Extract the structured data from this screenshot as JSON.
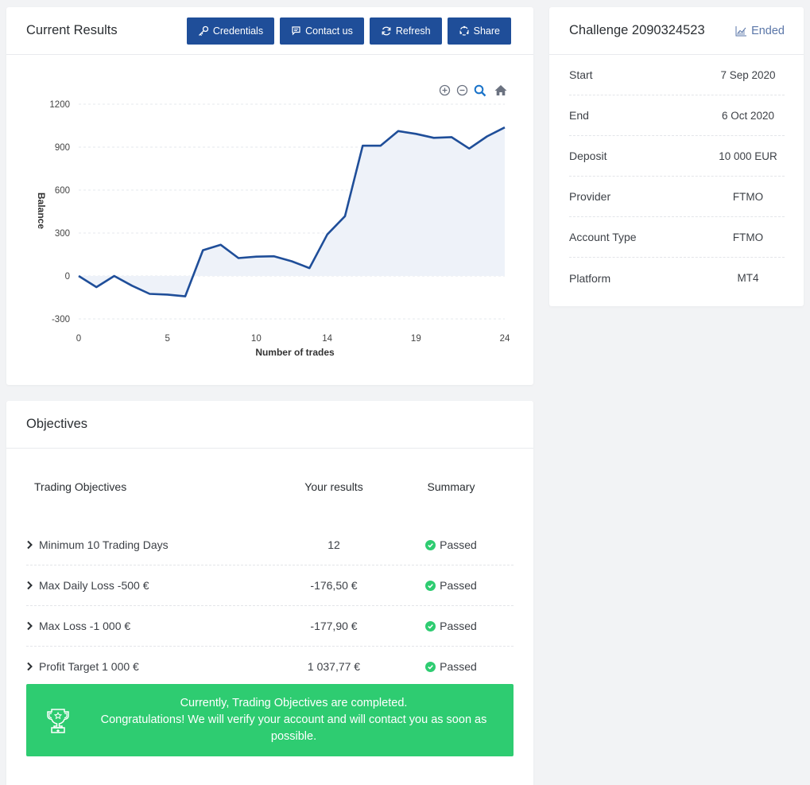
{
  "results": {
    "title": "Current Results",
    "buttons": {
      "credentials": "Credentials",
      "contact": "Contact us",
      "refresh": "Refresh",
      "share": "Share"
    }
  },
  "chart_data": {
    "type": "area",
    "title": "",
    "xlabel": "Number of trades",
    "ylabel": "Balance",
    "xlim": [
      0,
      24
    ],
    "ylim": [
      -300,
      1200
    ],
    "x_ticks": [
      0,
      5,
      10,
      14,
      19,
      24
    ],
    "y_ticks": [
      -300,
      0,
      300,
      600,
      900,
      1200
    ],
    "grid": true,
    "legend": "none",
    "line_color": "#1f4e99",
    "fill_color": "#eef2f9",
    "series": [
      {
        "x": [
          0,
          1,
          2,
          3,
          4,
          5,
          6,
          7,
          8,
          9,
          10,
          11,
          12,
          13,
          14,
          15,
          16,
          17,
          18,
          19,
          20,
          21,
          22,
          23,
          24
        ],
        "values": [
          0,
          -78,
          0,
          -68,
          -125,
          -130,
          -142,
          180,
          218,
          125,
          135,
          138,
          103,
          55,
          290,
          418,
          910,
          910,
          1012,
          993,
          965,
          970,
          890,
          975,
          1038
        ]
      }
    ]
  },
  "challenge": {
    "title": "Challenge 2090324523",
    "status": "Ended",
    "rows": [
      {
        "label": "Start",
        "value": "7 Sep 2020"
      },
      {
        "label": "End",
        "value": "6 Oct 2020"
      },
      {
        "label": "Deposit",
        "value": "10 000 EUR"
      },
      {
        "label": "Provider",
        "value": "FTMO"
      },
      {
        "label": "Account Type",
        "value": "FTMO"
      },
      {
        "label": "Platform",
        "value": "MT4"
      }
    ]
  },
  "objectives": {
    "title": "Objectives",
    "headers": {
      "name": "Trading Objectives",
      "result": "Your results",
      "summary": "Summary"
    },
    "rows": [
      {
        "name": "Minimum 10 Trading Days",
        "result": "12",
        "summary": "Passed"
      },
      {
        "name": "Max Daily Loss -500 €",
        "result": "-176,50 €",
        "summary": "Passed"
      },
      {
        "name": "Max Loss -1 000 €",
        "result": "-177,90 €",
        "summary": "Passed"
      },
      {
        "name": "Profit Target 1 000 €",
        "result": "1 037,77 €",
        "summary": "Passed"
      }
    ],
    "banner": {
      "line1": "Currently, Trading Objectives are completed.",
      "line2": "Congratulations! We will verify your account and will contact you as soon as possible."
    }
  }
}
